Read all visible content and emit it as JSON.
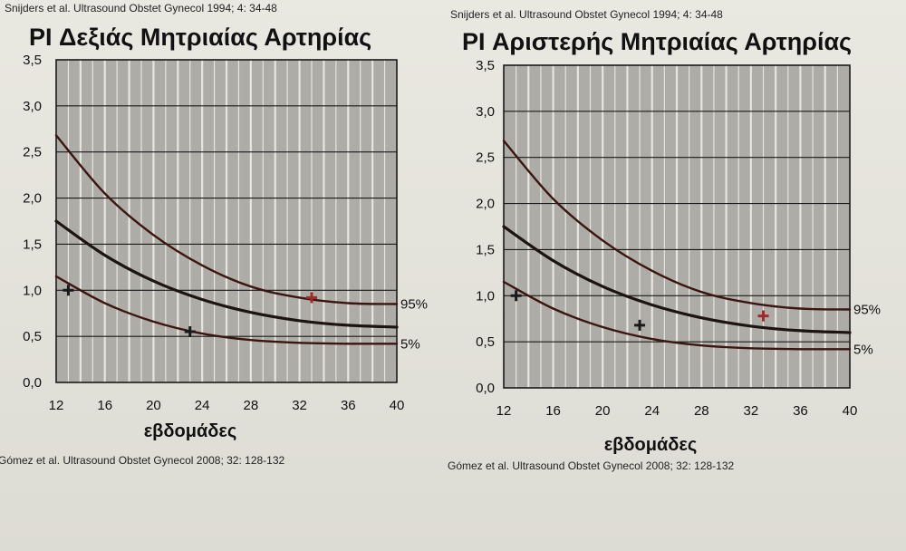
{
  "chart_data": [
    {
      "type": "line",
      "header_ref": "Snijders et al. Ultrasound Obstet Gynecol 1994; 4: 34-48",
      "title": "PI Δεξιάς Μητριαίας Αρτηρίας",
      "xlabel": "εβδομάδες",
      "footer_ref": "Gómez et al. Ultrasound Obstet Gynecol 2008; 32: 128-132",
      "xlim": [
        12,
        40
      ],
      "ylim": [
        0,
        3.5
      ],
      "x_ticks": [
        12,
        16,
        20,
        24,
        28,
        32,
        36,
        40
      ],
      "y_ticks": [
        "0,0",
        "0,5",
        "1,0",
        "1,5",
        "2,0",
        "2,5",
        "3,0",
        "3,5"
      ],
      "grid": true,
      "x": [
        12,
        16,
        20,
        24,
        28,
        32,
        36,
        40
      ],
      "series": [
        {
          "name": "95%",
          "values": [
            2.68,
            2.05,
            1.6,
            1.27,
            1.04,
            0.92,
            0.86,
            0.85
          ]
        },
        {
          "name": "",
          "values": [
            1.75,
            1.38,
            1.1,
            0.9,
            0.76,
            0.67,
            0.62,
            0.6
          ]
        },
        {
          "name": "5%",
          "values": [
            1.15,
            0.86,
            0.66,
            0.53,
            0.46,
            0.43,
            0.42,
            0.42
          ]
        }
      ],
      "points": [
        {
          "x": 13,
          "y": 1.0,
          "color": "#1a1a1a"
        },
        {
          "x": 23,
          "y": 0.55,
          "color": "#1a1a1a"
        },
        {
          "x": 33,
          "y": 0.92,
          "color": "#a02a2a"
        }
      ]
    },
    {
      "type": "line",
      "header_ref": "Snijders et al. Ultrasound Obstet Gynecol 1994; 4: 34-48",
      "title": "PI Αριστερής Μητριαίας Αρτηρίας",
      "xlabel": "εβδομάδες",
      "footer_ref": "Gómez et al. Ultrasound Obstet Gynecol 2008; 32: 128-132",
      "xlim": [
        12,
        40
      ],
      "ylim": [
        0,
        3.5
      ],
      "x_ticks": [
        12,
        16,
        20,
        24,
        28,
        32,
        36,
        40
      ],
      "y_ticks": [
        "0,0",
        "0,5",
        "1,0",
        "1,5",
        "2,0",
        "2,5",
        "3,0",
        "3,5"
      ],
      "grid": true,
      "x": [
        12,
        16,
        20,
        24,
        28,
        32,
        36,
        40
      ],
      "series": [
        {
          "name": "95%",
          "values": [
            2.68,
            2.05,
            1.6,
            1.27,
            1.04,
            0.92,
            0.86,
            0.85
          ]
        },
        {
          "name": "",
          "values": [
            1.75,
            1.38,
            1.1,
            0.9,
            0.76,
            0.67,
            0.62,
            0.6
          ]
        },
        {
          "name": "5%",
          "values": [
            1.15,
            0.86,
            0.66,
            0.53,
            0.46,
            0.43,
            0.42,
            0.42
          ]
        }
      ],
      "points": [
        {
          "x": 13,
          "y": 1.0,
          "color": "#1a1a1a"
        },
        {
          "x": 23,
          "y": 0.68,
          "color": "#1a1a1a"
        },
        {
          "x": 33,
          "y": 0.78,
          "color": "#a02a2a"
        }
      ]
    }
  ],
  "colors": {
    "plot_bg": "#aeaca6",
    "grid": "#f1f0ea",
    "curve": "#1c1410",
    "curve_outer": "#3a1512"
  }
}
